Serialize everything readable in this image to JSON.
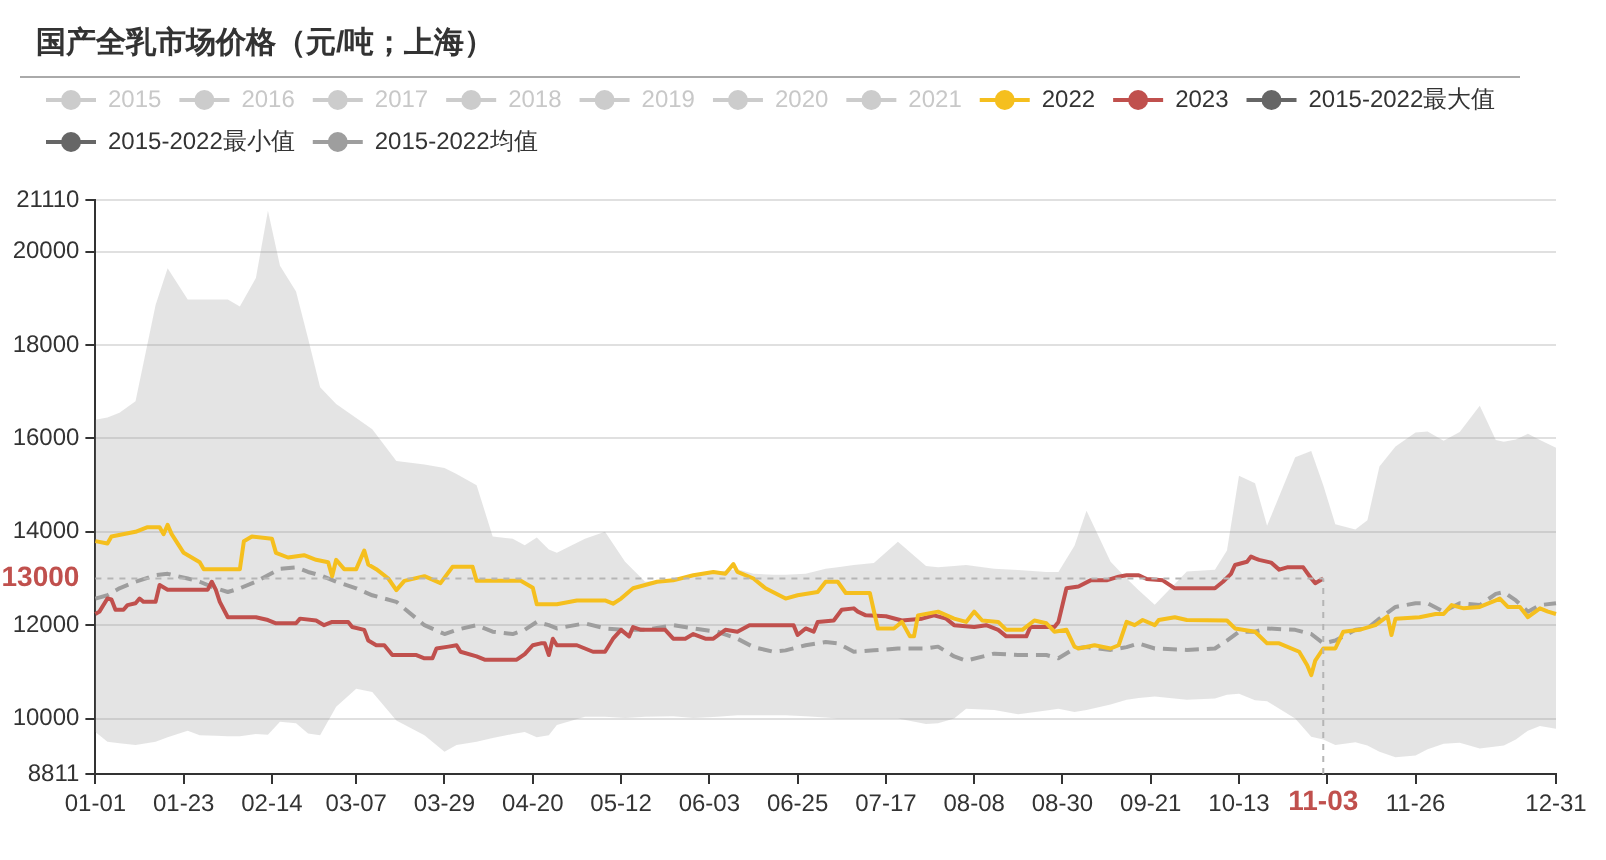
{
  "chart_data": {
    "type": "line",
    "title": "国产全乳市场价格（元/吨；上海）",
    "xlim": [
      "--01-01",
      "--12-31"
    ],
    "xticks": [
      {
        "value": "--01-01",
        "label": "01-01"
      },
      {
        "value": "--01-23",
        "label": "01-23"
      },
      {
        "value": "--02-14",
        "label": "02-14"
      },
      {
        "value": "--03-07",
        "label": "03-07"
      },
      {
        "value": "--03-29",
        "label": "03-29"
      },
      {
        "value": "--04-20",
        "label": "04-20"
      },
      {
        "value": "--05-12",
        "label": "05-12"
      },
      {
        "value": "--06-03",
        "label": "06-03"
      },
      {
        "value": "--06-25",
        "label": "06-25"
      },
      {
        "value": "--07-17",
        "label": "07-17"
      },
      {
        "value": "--08-08",
        "label": "08-08"
      },
      {
        "value": "--08-30",
        "label": "08-30"
      },
      {
        "value": "--09-21",
        "label": "09-21"
      },
      {
        "value": "--10-13",
        "label": "10-13"
      },
      {
        "value": "--11-04",
        "label": null
      },
      {
        "value": "--11-26",
        "label": "11-26"
      },
      {
        "value": "--12-31",
        "label": "12-31"
      }
    ],
    "ylim": [
      8811,
      21110
    ],
    "yticks": [
      8811,
      10000,
      12000,
      14000,
      16000,
      18000,
      20000,
      21110
    ],
    "grid": "y",
    "legend": "top left",
    "marker": "none",
    "line_style": "solid",
    "annotations": [
      {
        "text": "13000",
        "x": "--11-03",
        "y": 13000
      },
      {
        "text": "11-03",
        "x": "--11-03",
        "y": 13000
      }
    ],
    "series": [
      {
        "name": "2015",
        "color": "#cccccc"
      },
      {
        "name": "2016",
        "color": "#cccccc"
      },
      {
        "name": "2017",
        "color": "#cccccc"
      },
      {
        "name": "2018",
        "color": "#cccccc"
      },
      {
        "name": "2019",
        "color": "#cccccc"
      },
      {
        "name": "2020",
        "color": "#cccccc"
      },
      {
        "name": "2021",
        "color": "#cccccc"
      },
      {
        "name": "2022",
        "color": "#f5bf1e",
        "x": [
          "--01-01",
          "--01-04",
          "--01-05",
          "--01-11",
          "--01-14",
          "--01-17",
          "--01-18",
          "--01-19",
          "--01-20",
          "--01-23",
          "--01-27",
          "--01-28",
          "--02-06",
          "--02-07",
          "--02-09",
          "--02-14",
          "--02-15",
          "--02-18",
          "--02-22",
          "--02-25",
          "--02-28",
          "--03-01",
          "--03-02",
          "--03-04",
          "--03-07",
          "--03-09",
          "--03-10",
          "--03-12",
          "--03-15",
          "--03-17",
          "--03-19",
          "--03-24",
          "--03-28",
          "--03-31",
          "--04-05",
          "--04-06",
          "--04-17",
          "--04-20",
          "--04-21",
          "--04-26",
          "--05-01",
          "--05-08",
          "--05-10",
          "--05-12",
          "--05-15",
          "--05-18",
          "--05-21",
          "--05-25",
          "--05-30",
          "--06-04",
          "--06-07",
          "--06-09",
          "--06-10",
          "--06-14",
          "--06-17",
          "--06-22",
          "--06-25",
          "--06-30",
          "--07-02",
          "--07-05",
          "--07-07",
          "--07-13",
          "--07-15",
          "--07-19",
          "--07-21",
          "--07-23",
          "--07-24",
          "--07-25",
          "--07-30",
          "--08-03",
          "--08-06",
          "--08-08",
          "--08-10",
          "--08-14",
          "--08-16",
          "--08-20",
          "--08-23",
          "--08-26",
          "--08-28",
          "--08-31",
          "--09-02",
          "--09-03",
          "--09-07",
          "--09-11",
          "--09-13",
          "--09-15",
          "--09-17",
          "--09-19",
          "--09-22",
          "--09-23",
          "--09-27",
          "--09-30",
          "--10-10",
          "--10-12",
          "--10-17",
          "--10-20",
          "--10-23",
          "--10-28",
          "--10-30",
          "--10-31",
          "--11-01",
          "--11-03",
          "--11-06",
          "--11-08",
          "--11-12",
          "--11-16",
          "--11-19",
          "--11-20",
          "--11-21",
          "--11-27",
          "--12-01",
          "--12-03",
          "--12-05",
          "--12-08",
          "--12-12",
          "--12-16",
          "--12-17",
          "--12-19",
          "--12-22",
          "--12-24",
          "--12-27",
          "--12-29",
          "--12-31"
        ],
        "values": [
          13800,
          13750,
          13900,
          14000,
          14100,
          14100,
          13950,
          14150,
          13950,
          13550,
          13350,
          13200,
          13200,
          13800,
          13900,
          13850,
          13550,
          13450,
          13500,
          13400,
          13350,
          13050,
          13400,
          13200,
          13200,
          13600,
          13300,
          13200,
          13000,
          12750,
          12950,
          13050,
          12900,
          13250,
          13250,
          12950,
          12950,
          12800,
          12450,
          12450,
          12530,
          12530,
          12460,
          12570,
          12790,
          12860,
          12930,
          12960,
          13070,
          13140,
          13100,
          13310,
          13140,
          13000,
          12790,
          12570,
          12640,
          12710,
          12930,
          12930,
          12690,
          12690,
          11930,
          11930,
          12070,
          11760,
          11760,
          12210,
          12290,
          12140,
          12070,
          12290,
          12100,
          12070,
          11900,
          11900,
          12100,
          12040,
          11860,
          11900,
          11540,
          11500,
          11570,
          11500,
          11570,
          12070,
          12000,
          12110,
          12000,
          12110,
          12170,
          12110,
          12100,
          11930,
          11860,
          11610,
          11610,
          11430,
          11140,
          10930,
          11240,
          11500,
          11500,
          11860,
          11900,
          12000,
          12190,
          11790,
          12140,
          12170,
          12240,
          12240,
          12430,
          12360,
          12390,
          12530,
          12570,
          12390,
          12390,
          12170,
          12360,
          12290,
          12240
        ]
      },
      {
        "name": "2023",
        "color": "#c0504d",
        "x": [
          "--01-01",
          "--01-02",
          "--01-04",
          "--01-05",
          "--01-06",
          "--01-08",
          "--01-09",
          "--01-11",
          "--01-12",
          "--01-13",
          "--01-16",
          "--01-17",
          "--01-19",
          "--01-29",
          "--01-30",
          "--01-31",
          "--02-01",
          "--02-03",
          "--02-10",
          "--02-13",
          "--02-15",
          "--02-20",
          "--02-21",
          "--02-25",
          "--02-27",
          "--03-01",
          "--03-05",
          "--03-06",
          "--03-09",
          "--03-10",
          "--03-12",
          "--03-14",
          "--03-16",
          "--03-22",
          "--03-24",
          "--03-26",
          "--03-27",
          "--03-30",
          "--04-01",
          "--04-02",
          "--04-06",
          "--04-08",
          "--04-16",
          "--04-18",
          "--04-20",
          "--04-22",
          "--04-23",
          "--04-24",
          "--04-25",
          "--04-26",
          "--05-01",
          "--05-05",
          "--05-08",
          "--05-10",
          "--05-12",
          "--05-14",
          "--05-15",
          "--05-17",
          "--05-23",
          "--05-25",
          "--05-28",
          "--05-30",
          "--06-02",
          "--06-04",
          "--06-07",
          "--06-10",
          "--06-13",
          "--06-24",
          "--06-25",
          "--06-27",
          "--06-29",
          "--06-30",
          "--07-04",
          "--07-06",
          "--07-09",
          "--07-10",
          "--07-12",
          "--07-17",
          "--07-21",
          "--07-26",
          "--07-29",
          "--08-01",
          "--08-03",
          "--08-08",
          "--08-11",
          "--08-14",
          "--08-16",
          "--08-21",
          "--08-22",
          "--08-28",
          "--08-29",
          "--08-31",
          "--09-03",
          "--09-06",
          "--09-10",
          "--09-13",
          "--09-15",
          "--09-18",
          "--09-20",
          "--09-24",
          "--09-27",
          "--10-07",
          "--10-09",
          "--10-11",
          "--10-12",
          "--10-15",
          "--10-16",
          "--10-17",
          "--10-18",
          "--10-21",
          "--10-23",
          "--10-25",
          "--10-29",
          "--10-31",
          "--11-01",
          "--11-03"
        ],
        "values": [
          12240,
          12290,
          12570,
          12550,
          12330,
          12330,
          12430,
          12470,
          12570,
          12500,
          12500,
          12860,
          12760,
          12760,
          12930,
          12760,
          12500,
          12170,
          12170,
          12110,
          12040,
          12040,
          12140,
          12100,
          12000,
          12070,
          12070,
          11960,
          11900,
          11670,
          11570,
          11570,
          11360,
          11360,
          11290,
          11290,
          11500,
          11540,
          11570,
          11430,
          11330,
          11260,
          11260,
          11380,
          11570,
          11610,
          11610,
          11360,
          11710,
          11570,
          11570,
          11430,
          11430,
          11710,
          11900,
          11760,
          11960,
          11900,
          11900,
          11710,
          11710,
          11810,
          11710,
          11710,
          11900,
          11860,
          12000,
          12000,
          11790,
          11930,
          11860,
          12070,
          12100,
          12330,
          12360,
          12290,
          12210,
          12190,
          12100,
          12140,
          12210,
          12140,
          12000,
          11960,
          12000,
          11900,
          11760,
          11760,
          11960,
          11960,
          12070,
          12790,
          12830,
          12960,
          12960,
          13040,
          13070,
          13070,
          12990,
          12960,
          12790,
          12790,
          12930,
          13100,
          13290,
          13360,
          13470,
          13430,
          13400,
          13340,
          13190,
          13240,
          13240,
          13000,
          12900,
          13000
        ]
      },
      {
        "name": "2015-2022最大值",
        "color": "#666666"
      },
      {
        "name": "2015-2022最小值",
        "color": "#666666"
      },
      {
        "name": "2015-2022均值",
        "color": "#9e9e9e",
        "line_style": "dashed",
        "x": [
          "--01-01",
          "--01-04",
          "--01-07",
          "--01-11",
          "--01-16",
          "--01-19",
          "--01-24",
          "--01-27",
          "--01-31",
          "--02-03",
          "--02-06",
          "--02-10",
          "--02-13",
          "--02-16",
          "--02-20",
          "--02-23",
          "--02-26",
          "--03-02",
          "--03-07",
          "--03-11",
          "--03-17",
          "--03-24",
          "--03-29",
          "--04-01",
          "--04-06",
          "--04-10",
          "--04-15",
          "--04-18",
          "--04-21",
          "--04-24",
          "--04-26",
          "--05-03",
          "--05-08",
          "--05-13",
          "--05-18",
          "--05-25",
          "--05-30",
          "--06-05",
          "--06-10",
          "--06-14",
          "--06-19",
          "--06-22",
          "--06-27",
          "--07-02",
          "--07-05",
          "--07-09",
          "--07-14",
          "--07-20",
          "--07-27",
          "--07-30",
          "--08-03",
          "--08-06",
          "--08-13",
          "--08-19",
          "--08-26",
          "--08-29",
          "--09-02",
          "--09-05",
          "--09-11",
          "--09-15",
          "--09-18",
          "--09-22",
          "--09-30",
          "--10-07",
          "--10-10",
          "--10-13",
          "--10-17",
          "--10-20",
          "--10-27",
          "--10-31",
          "--11-03",
          "--11-06",
          "--11-11",
          "--11-14",
          "--11-17",
          "--11-21",
          "--11-26",
          "--11-29",
          "--12-03",
          "--12-07",
          "--12-12",
          "--12-16",
          "--12-18",
          "--12-21",
          "--12-24",
          "--12-27",
          "--12-31"
        ],
        "values": [
          12570,
          12640,
          12790,
          12930,
          13070,
          13100,
          13000,
          12930,
          12790,
          12710,
          12790,
          12930,
          13070,
          13210,
          13240,
          13140,
          13070,
          12930,
          12790,
          12640,
          12500,
          12000,
          11810,
          11900,
          12000,
          11860,
          11810,
          11900,
          12070,
          12000,
          11930,
          12040,
          11930,
          11900,
          11900,
          12000,
          11930,
          11860,
          11710,
          11530,
          11430,
          11460,
          11570,
          11640,
          11610,
          11430,
          11460,
          11500,
          11500,
          11540,
          11330,
          11240,
          11390,
          11360,
          11360,
          11290,
          11500,
          11530,
          11470,
          11530,
          11610,
          11500,
          11470,
          11500,
          11670,
          11860,
          11860,
          11930,
          11900,
          11810,
          11610,
          11670,
          11900,
          11930,
          12140,
          12390,
          12470,
          12470,
          12290,
          12470,
          12430,
          12670,
          12710,
          12530,
          12290,
          12430,
          12470
        ],
        "upper": [
          16400,
          16450,
          16550,
          16800,
          18860,
          19650,
          18980,
          18980,
          18980,
          18980,
          18830,
          19440,
          20880,
          19700,
          19150,
          18140,
          17100,
          16740,
          16440,
          16200,
          15520,
          15440,
          15370,
          15240,
          15000,
          13900,
          13850,
          13710,
          13880,
          13620,
          13550,
          13850,
          14000,
          13360,
          12930,
          12990,
          13100,
          13150,
          13200,
          13100,
          13080,
          13080,
          13100,
          13210,
          13240,
          13290,
          13330,
          13790,
          13270,
          13240,
          13270,
          13290,
          13210,
          13180,
          13140,
          13140,
          13700,
          14450,
          13360,
          13000,
          12750,
          12440,
          13150,
          13190,
          13600,
          15200,
          15040,
          14130,
          15600,
          15730,
          15000,
          14160,
          14050,
          14250,
          15400,
          15830,
          16130,
          16150,
          15950,
          16140,
          16700,
          15970,
          15930,
          15980,
          16100,
          15970,
          15800
        ],
        "lower": [
          9710,
          9500,
          9470,
          9430,
          9500,
          9600,
          9740,
          9640,
          9630,
          9620,
          9620,
          9670,
          9650,
          9930,
          9900,
          9680,
          9640,
          10250,
          10640,
          10570,
          9960,
          9640,
          9290,
          9430,
          9500,
          9580,
          9670,
          9710,
          9600,
          9640,
          9860,
          10040,
          10040,
          10010,
          10040,
          10050,
          10010,
          10040,
          10070,
          10070,
          10070,
          10070,
          10050,
          10020,
          10000,
          10000,
          10000,
          10000,
          9880,
          9900,
          10000,
          10210,
          10180,
          10090,
          10170,
          10210,
          10140,
          10180,
          10300,
          10400,
          10440,
          10470,
          10400,
          10430,
          10510,
          10530,
          10390,
          10370,
          10000,
          9610,
          9550,
          9430,
          9490,
          9420,
          9290,
          9170,
          9210,
          9340,
          9460,
          9480,
          9360,
          9400,
          9420,
          9550,
          9740,
          9840,
          9780
        ]
      }
    ]
  }
}
